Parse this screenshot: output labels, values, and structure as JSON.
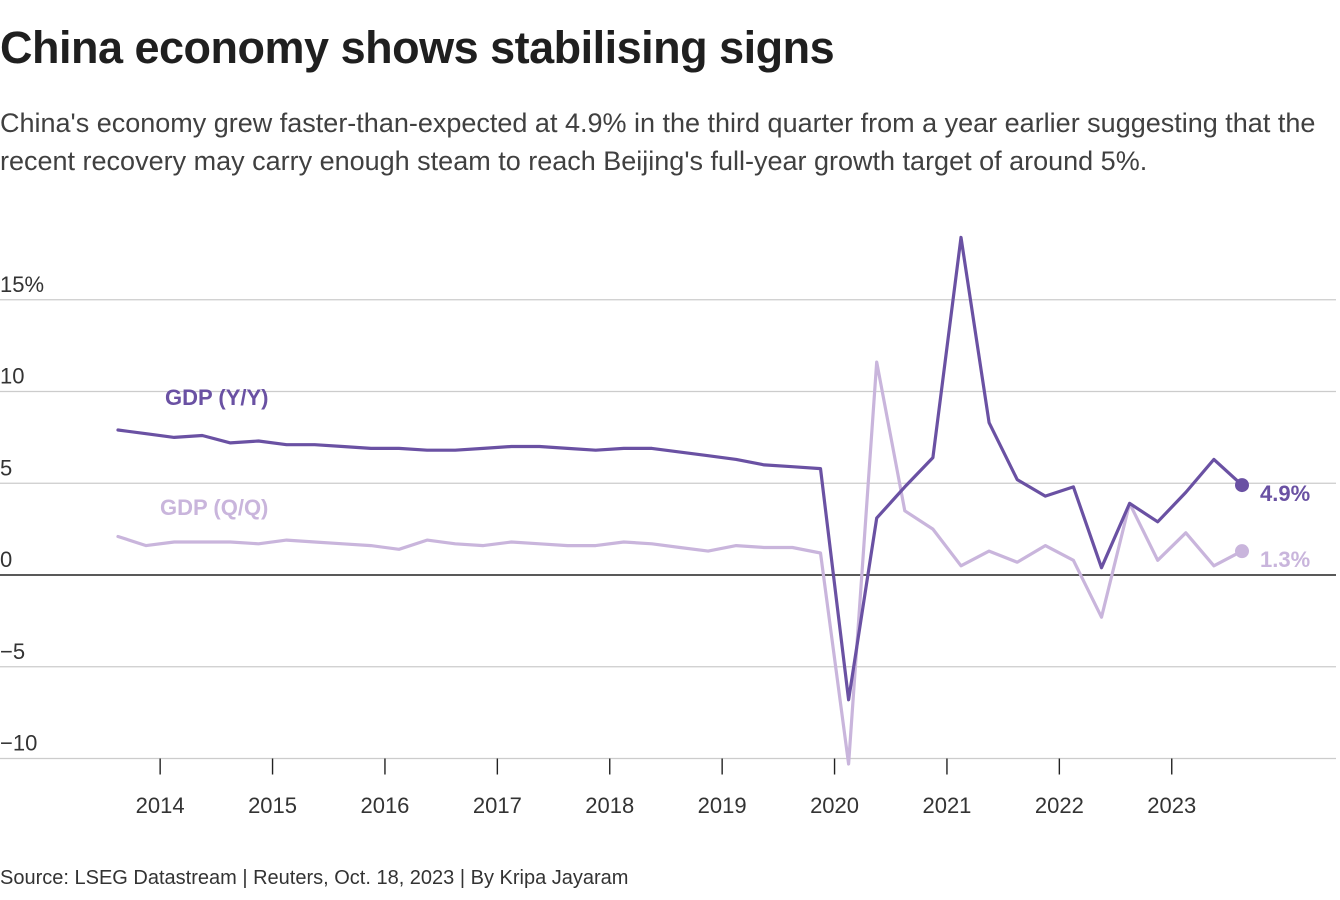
{
  "title": "China economy shows stabilising signs",
  "subtitle": "China's economy grew faster-than-expected at 4.9% in the third quarter from a year earlier suggesting that the recent recovery may carry enough steam to reach Beijing's full-year growth target of around 5%.",
  "source": "Source: LSEG Datastream | Reuters, Oct. 18, 2023 | By Kripa Jayaram",
  "colors": {
    "yy": "#6a51a3",
    "qq": "#c9b5dc",
    "grid": "#cccccc",
    "zero": "#222222",
    "text": "#333333"
  },
  "chart_data": {
    "type": "line",
    "title": "China economy shows stabilising signs",
    "xlabel": "",
    "ylabel": "",
    "ylim": [
      -10.5,
      19
    ],
    "grid": true,
    "y_ticks": [
      {
        "value": 15,
        "label": "15%"
      },
      {
        "value": 10,
        "label": "10"
      },
      {
        "value": 5,
        "label": "5"
      },
      {
        "value": 0,
        "label": "0"
      },
      {
        "value": -5,
        "label": "−5"
      },
      {
        "value": -10,
        "label": "−10"
      }
    ],
    "x_ticks": [
      "2014",
      "2015",
      "2016",
      "2017",
      "2018",
      "2019",
      "2020",
      "2021",
      "2022",
      "2023"
    ],
    "x": [
      "2013 Q3",
      "2013 Q4",
      "2014 Q1",
      "2014 Q2",
      "2014 Q3",
      "2014 Q4",
      "2015 Q1",
      "2015 Q2",
      "2015 Q3",
      "2015 Q4",
      "2016 Q1",
      "2016 Q2",
      "2016 Q3",
      "2016 Q4",
      "2017 Q1",
      "2017 Q2",
      "2017 Q3",
      "2017 Q4",
      "2018 Q1",
      "2018 Q2",
      "2018 Q3",
      "2018 Q4",
      "2019 Q1",
      "2019 Q2",
      "2019 Q3",
      "2019 Q4",
      "2020 Q1",
      "2020 Q2",
      "2020 Q3",
      "2020 Q4",
      "2021 Q1",
      "2021 Q2",
      "2021 Q3",
      "2021 Q4",
      "2022 Q1",
      "2022 Q2",
      "2022 Q3",
      "2022 Q4",
      "2023 Q1",
      "2023 Q2",
      "2023 Q3"
    ],
    "series": [
      {
        "name": "GDP (Y/Y)",
        "color": "#6a51a3",
        "values": [
          7.9,
          7.7,
          7.5,
          7.6,
          7.2,
          7.3,
          7.1,
          7.1,
          7.0,
          6.9,
          6.9,
          6.8,
          6.8,
          6.9,
          7.0,
          7.0,
          6.9,
          6.8,
          6.9,
          6.9,
          6.7,
          6.5,
          6.3,
          6.0,
          5.9,
          5.8,
          -6.8,
          3.1,
          4.8,
          6.4,
          18.4,
          8.3,
          5.2,
          4.3,
          4.8,
          0.4,
          3.9,
          2.9,
          4.5,
          6.3,
          4.9
        ],
        "end_label": "4.9%",
        "label": "GDP (Y/Y)"
      },
      {
        "name": "GDP (Q/Q)",
        "color": "#c9b5dc",
        "values": [
          2.1,
          1.6,
          1.8,
          1.8,
          1.8,
          1.7,
          1.9,
          1.8,
          1.7,
          1.6,
          1.4,
          1.9,
          1.7,
          1.6,
          1.8,
          1.7,
          1.6,
          1.6,
          1.8,
          1.7,
          1.5,
          1.3,
          1.6,
          1.5,
          1.5,
          1.2,
          -10.3,
          11.6,
          3.5,
          2.5,
          0.5,
          1.3,
          0.7,
          1.6,
          0.8,
          -2.3,
          3.9,
          0.8,
          2.3,
          0.5,
          1.3
        ],
        "end_label": "1.3%",
        "label": "GDP (Q/Q)"
      }
    ]
  }
}
